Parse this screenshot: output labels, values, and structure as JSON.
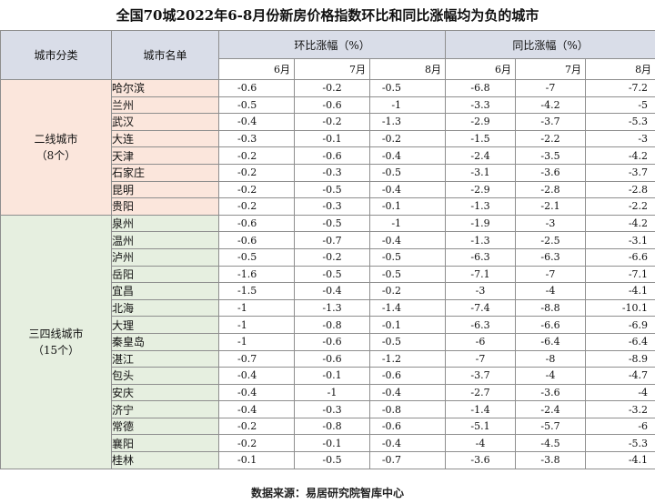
{
  "title": "全国70城2022年6-8月份新房价格指数环比和同比涨幅均为负的城市",
  "headers": {
    "category": "城市分类",
    "city": "城市名单",
    "mom": "环比涨幅（%）",
    "yoy": "同比涨幅（%）",
    "months": [
      "6月",
      "7月",
      "8月"
    ]
  },
  "groups": [
    {
      "label": "二线城市",
      "count": "（8个）",
      "tier": "t2"
    },
    {
      "label": "三四线城市",
      "count": "（15个）",
      "tier": "t3"
    }
  ],
  "footer": "数据来源：易居研究院智库中心",
  "chart_data": {
    "type": "table",
    "title": "全国70城2022年6-8月份新房价格指数环比和同比涨幅均为负的城市",
    "columns": [
      "城市分类",
      "城市名单",
      "环比6月",
      "环比7月",
      "环比8月",
      "同比6月",
      "同比7月",
      "同比8月"
    ],
    "rows": [
      {
        "group": "二线城市",
        "city": "哈尔滨",
        "mom": [
          "-0.6",
          "-0.2",
          "-0.5"
        ],
        "yoy": [
          "-6.8",
          "-7",
          "-7.2"
        ]
      },
      {
        "group": "二线城市",
        "city": "兰州",
        "mom": [
          "-0.5",
          "-0.6",
          "-1"
        ],
        "yoy": [
          "-3.3",
          "-4.2",
          "-5"
        ]
      },
      {
        "group": "二线城市",
        "city": "武汉",
        "mom": [
          "-0.4",
          "-0.2",
          "-1.3"
        ],
        "yoy": [
          "-2.9",
          "-3.7",
          "-5.3"
        ]
      },
      {
        "group": "二线城市",
        "city": "大连",
        "mom": [
          "-0.3",
          "-0.1",
          "-0.2"
        ],
        "yoy": [
          "-1.5",
          "-2.2",
          "-3"
        ]
      },
      {
        "group": "二线城市",
        "city": "天津",
        "mom": [
          "-0.2",
          "-0.6",
          "-0.4"
        ],
        "yoy": [
          "-2.4",
          "-3.5",
          "-4.2"
        ]
      },
      {
        "group": "二线城市",
        "city": "石家庄",
        "mom": [
          "-0.2",
          "-0.3",
          "-0.5"
        ],
        "yoy": [
          "-3.1",
          "-3.6",
          "-3.7"
        ]
      },
      {
        "group": "二线城市",
        "city": "昆明",
        "mom": [
          "-0.2",
          "-0.5",
          "-0.4"
        ],
        "yoy": [
          "-2.9",
          "-2.8",
          "-2.8"
        ]
      },
      {
        "group": "二线城市",
        "city": "贵阳",
        "mom": [
          "-0.2",
          "-0.3",
          "-0.1"
        ],
        "yoy": [
          "-1.3",
          "-2.1",
          "-2.2"
        ]
      },
      {
        "group": "三四线城市",
        "city": "泉州",
        "mom": [
          "-0.6",
          "-0.5",
          "-1"
        ],
        "yoy": [
          "-1.9",
          "-3",
          "-4.2"
        ]
      },
      {
        "group": "三四线城市",
        "city": "温州",
        "mom": [
          "-0.6",
          "-0.7",
          "-0.4"
        ],
        "yoy": [
          "-1.3",
          "-2.5",
          "-3.1"
        ]
      },
      {
        "group": "三四线城市",
        "city": "泸州",
        "mom": [
          "-0.5",
          "-0.2",
          "-0.5"
        ],
        "yoy": [
          "-6.3",
          "-6.3",
          "-6.6"
        ]
      },
      {
        "group": "三四线城市",
        "city": "岳阳",
        "mom": [
          "-1.6",
          "-0.5",
          "-0.5"
        ],
        "yoy": [
          "-7.1",
          "-7",
          "-7.1"
        ]
      },
      {
        "group": "三四线城市",
        "city": "宜昌",
        "mom": [
          "-1.5",
          "-0.4",
          "-0.2"
        ],
        "yoy": [
          "-3",
          "-4",
          "-4.1"
        ]
      },
      {
        "group": "三四线城市",
        "city": "北海",
        "mom": [
          "-1",
          "-1.3",
          "-1.4"
        ],
        "yoy": [
          "-7.4",
          "-8.8",
          "-10.1"
        ]
      },
      {
        "group": "三四线城市",
        "city": "大理",
        "mom": [
          "-1",
          "-0.8",
          "-0.1"
        ],
        "yoy": [
          "-6.3",
          "-6.6",
          "-6.9"
        ]
      },
      {
        "group": "三四线城市",
        "city": "秦皇岛",
        "mom": [
          "-1",
          "-0.6",
          "-0.5"
        ],
        "yoy": [
          "-6",
          "-6.4",
          "-6.4"
        ]
      },
      {
        "group": "三四线城市",
        "city": "湛江",
        "mom": [
          "-0.7",
          "-0.6",
          "-1.2"
        ],
        "yoy": [
          "-7",
          "-8",
          "-8.9"
        ]
      },
      {
        "group": "三四线城市",
        "city": "包头",
        "mom": [
          "-0.4",
          "-0.1",
          "-0.6"
        ],
        "yoy": [
          "-3.7",
          "-4",
          "-4.7"
        ]
      },
      {
        "group": "三四线城市",
        "city": "安庆",
        "mom": [
          "-0.4",
          "-1",
          "-0.4"
        ],
        "yoy": [
          "-2.7",
          "-3.6",
          "-4"
        ]
      },
      {
        "group": "三四线城市",
        "city": "济宁",
        "mom": [
          "-0.4",
          "-0.3",
          "-0.8"
        ],
        "yoy": [
          "-1.4",
          "-2.4",
          "-3.2"
        ]
      },
      {
        "group": "三四线城市",
        "city": "常德",
        "mom": [
          "-0.2",
          "-0.8",
          "-0.6"
        ],
        "yoy": [
          "-5.1",
          "-5.7",
          "-6"
        ]
      },
      {
        "group": "三四线城市",
        "city": "襄阳",
        "mom": [
          "-0.2",
          "-0.1",
          "-0.4"
        ],
        "yoy": [
          "-4",
          "-4.5",
          "-5.3"
        ]
      },
      {
        "group": "三四线城市",
        "city": "桂林",
        "mom": [
          "-0.1",
          "-0.5",
          "-0.7"
        ],
        "yoy": [
          "-3.6",
          "-3.8",
          "-4.1"
        ]
      }
    ]
  }
}
